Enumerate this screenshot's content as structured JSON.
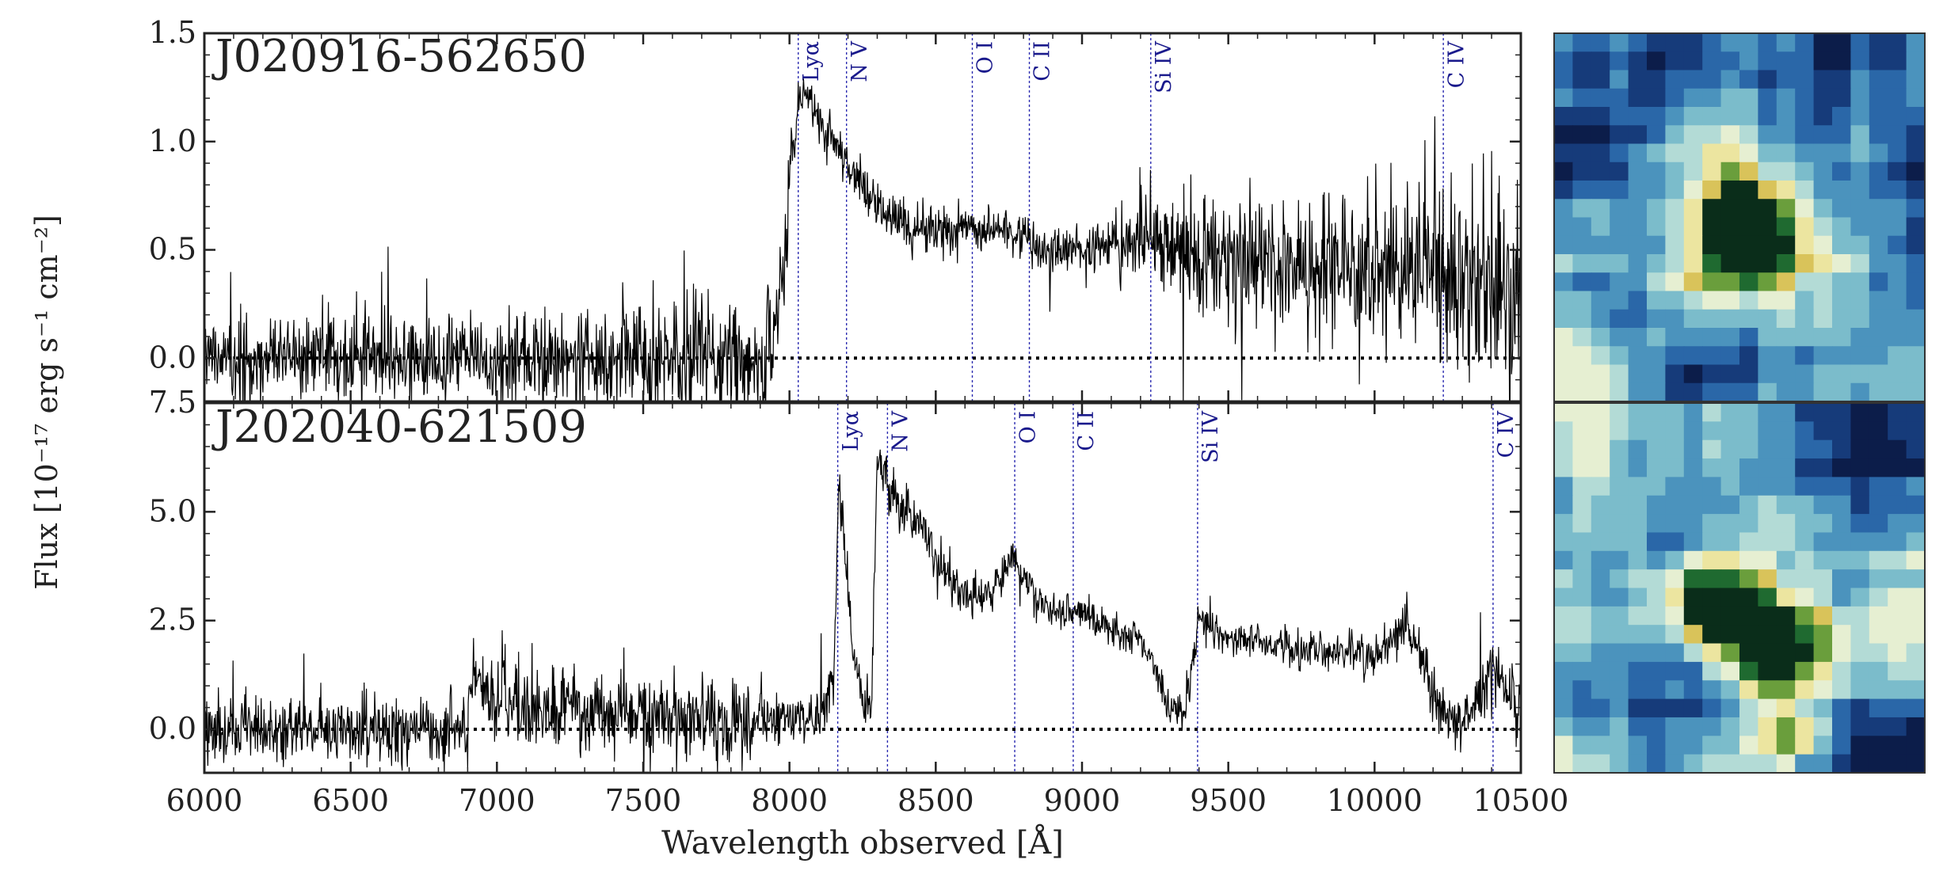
{
  "figure": {
    "ylabel": "Flux [10⁻¹⁷ erg s⁻¹ cm⁻²]",
    "xlabel": "Wavelength observed [Å]"
  },
  "chart_data": [
    {
      "type": "line",
      "title": "J020916-562650",
      "xlabel": "Wavelength observed [Å]",
      "ylabel": "Flux [10⁻¹⁷ erg s⁻¹ cm⁻²]",
      "xlim": [
        6000,
        10500
      ],
      "ylim": [
        -0.2,
        1.5
      ],
      "xticks": [
        6000,
        6500,
        7000,
        7500,
        8000,
        8500,
        9000,
        9500,
        10000,
        10500
      ],
      "yticks": [
        "0.0",
        "0.5",
        "1.0",
        "1.5"
      ],
      "ytick_values": [
        0.0,
        0.5,
        1.0,
        1.5
      ],
      "zero_line": 0.0,
      "spectrum_envelope": {
        "x": [
          6000,
          7000,
          7500,
          7950,
          8030,
          8060,
          8100,
          8150,
          8200,
          8250,
          8300,
          8400,
          8500,
          8600,
          8700,
          8800,
          8900,
          9000,
          9100,
          9200,
          9250,
          9300,
          9400,
          9600,
          9800,
          10000,
          10200,
          10400,
          10500
        ],
        "y": [
          0.0,
          0.0,
          0.0,
          0.02,
          1.2,
          1.2,
          1.1,
          1.0,
          0.9,
          0.8,
          0.7,
          0.6,
          0.6,
          0.58,
          0.6,
          0.55,
          0.5,
          0.5,
          0.52,
          0.55,
          0.56,
          0.5,
          0.47,
          0.45,
          0.45,
          0.43,
          0.4,
          0.35,
          0.3
        ]
      },
      "noise_envelope": {
        "x": [
          6000,
          6500,
          7000,
          7500,
          8000,
          8030,
          8300,
          9000,
          9300,
          9600,
          10000,
          10200,
          10500
        ],
        "sigma": [
          0.1,
          0.1,
          0.1,
          0.13,
          0.15,
          0.05,
          0.06,
          0.06,
          0.12,
          0.15,
          0.18,
          0.22,
          0.25
        ]
      },
      "lines": [
        {
          "label": "Lyα",
          "x": 8030
        },
        {
          "label": "N V",
          "x": 8195
        },
        {
          "label": "O I",
          "x": 8625
        },
        {
          "label": "C II",
          "x": 8820
        },
        {
          "label": "Si IV",
          "x": 9235
        },
        {
          "label": "C IV",
          "x": 10235
        }
      ]
    },
    {
      "type": "line",
      "title": "J202040-621509",
      "xlabel": "Wavelength observed [Å]",
      "ylabel": "Flux [10⁻¹⁷ erg s⁻¹ cm⁻²]",
      "xlim": [
        6000,
        10500
      ],
      "ylim": [
        -1.0,
        7.5
      ],
      "xticks": [
        6000,
        6500,
        7000,
        7500,
        8000,
        8500,
        9000,
        9500,
        10000,
        10500
      ],
      "yticks": [
        "0.0",
        "2.5",
        "5.0",
        "7.5"
      ],
      "ytick_values": [
        0.0,
        2.5,
        5.0,
        7.5
      ],
      "zero_line": 0.0,
      "spectrum_envelope": {
        "x": [
          6000,
          6900,
          6920,
          6950,
          7000,
          7200,
          7500,
          7700,
          7800,
          8000,
          8100,
          8150,
          8170,
          8200,
          8230,
          8260,
          8280,
          8300,
          8330,
          8360,
          8400,
          8450,
          8500,
          8550,
          8600,
          8650,
          8700,
          8750,
          8780,
          8800,
          8850,
          8900,
          9000,
          9100,
          9200,
          9250,
          9300,
          9350,
          9380,
          9400,
          9500,
          9700,
          9800,
          9900,
          10000,
          10050,
          10100,
          10150,
          10200,
          10250,
          10300,
          10350,
          10400,
          10450,
          10500
        ],
        "y": [
          0.0,
          0.0,
          1.6,
          1.0,
          0.7,
          0.5,
          0.3,
          0.2,
          0.1,
          0.2,
          0.2,
          1.0,
          5.8,
          3.0,
          1.2,
          0.6,
          0.6,
          6.2,
          5.8,
          5.3,
          5.0,
          4.8,
          4.0,
          3.4,
          3.1,
          3.0,
          3.3,
          3.8,
          3.9,
          3.5,
          3.0,
          2.7,
          2.7,
          2.3,
          2.0,
          1.4,
          0.4,
          0.5,
          1.6,
          2.6,
          2.1,
          1.9,
          1.8,
          1.7,
          1.6,
          2.0,
          2.4,
          1.8,
          0.8,
          0.3,
          0.2,
          0.5,
          1.5,
          1.0,
          0.6
        ]
      },
      "noise_envelope": {
        "x": [
          6000,
          6900,
          7000,
          7800,
          8000,
          8200,
          8500,
          9000,
          9500,
          10000,
          10500
        ],
        "sigma": [
          0.35,
          0.4,
          0.5,
          0.45,
          0.3,
          0.3,
          0.25,
          0.2,
          0.2,
          0.25,
          0.35
        ]
      },
      "lines": [
        {
          "label": "Lyα",
          "x": 8165
        },
        {
          "label": "N V",
          "x": 8335
        },
        {
          "label": "O I",
          "x": 8770
        },
        {
          "label": "C II",
          "x": 8970
        },
        {
          "label": "Si IV",
          "x": 9395
        },
        {
          "label": "C IV",
          "x": 10405
        }
      ]
    }
  ],
  "colors": {
    "spectrum": "#000000",
    "line_marker": "#2b2bb0",
    "line_label": "#1a1a8c",
    "zero_line": "#000000",
    "axis": "#222222",
    "colormap": [
      "#0c1d4a",
      "#163b7a",
      "#2a67a8",
      "#4b93bd",
      "#7bbccb",
      "#b3dbd6",
      "#e6efd2",
      "#ece5a0",
      "#d9c35a",
      "#6a9e3c",
      "#1f6a30",
      "#0a2d1a"
    ]
  },
  "cutouts": [
    {
      "name": "J020916-562650",
      "sources": [
        {
          "u": 0.5,
          "v": 0.53,
          "peak": 1.0,
          "width": 0.11
        }
      ],
      "seed": 11
    },
    {
      "name": "J202040-621509",
      "sources": [
        {
          "u": 0.43,
          "v": 0.55,
          "peak": 0.95,
          "width": 0.09
        },
        {
          "u": 0.6,
          "v": 0.68,
          "peak": 1.0,
          "width": 0.1
        },
        {
          "u": 0.65,
          "v": 0.9,
          "peak": 0.55,
          "width": 0.06
        }
      ],
      "seed": 29
    }
  ]
}
